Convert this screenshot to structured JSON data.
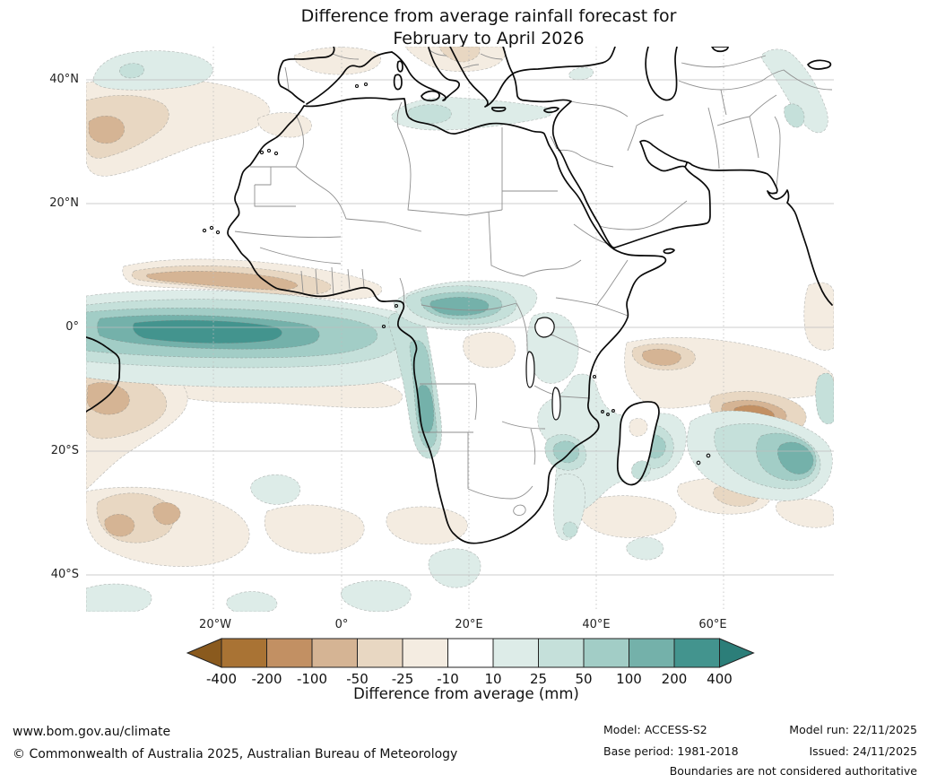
{
  "title": {
    "line1": "Difference from average rainfall forecast for",
    "line2": "February to April 2026"
  },
  "map": {
    "lat_labels": [
      "40°N",
      "20°N",
      "0°",
      "20°S",
      "40°S"
    ],
    "lon_labels": [
      "20°W",
      "0°",
      "20°E",
      "40°E",
      "60°E"
    ],
    "region": "Africa with surrounding Atlantic and Indian Oceans, southern Europe and the Middle East",
    "anomaly_regions": [
      {
        "area": "Equatorial Atlantic / Gulf of Guinea",
        "anomaly": "wetter",
        "peak_mm": "+200"
      },
      {
        "area": "Guinea coast band (~5-8N)",
        "anomaly": "drier",
        "peak_mm": "-100"
      },
      {
        "area": "Northwest Atlantic (~30N)",
        "anomaly": "drier",
        "peak_mm": "-100"
      },
      {
        "area": "Northeast Atlantic (~42N)",
        "anomaly": "wetter",
        "peak_mm": "+25"
      },
      {
        "area": "Central Mediterranean",
        "anomaly": "wetter",
        "peak_mm": "+25"
      },
      {
        "area": "Cameroon / Central African Republic",
        "anomaly": "wetter",
        "peak_mm": "+100"
      },
      {
        "area": "Gabon-Angola coast",
        "anomaly": "wetter",
        "peak_mm": "+100"
      },
      {
        "area": "Southeast Atlantic (~10-30S)",
        "anomaly": "drier",
        "peak_mm": "-100"
      },
      {
        "area": "Mozambique Channel and Madagascar",
        "anomaly": "wetter",
        "peak_mm": "+50"
      },
      {
        "area": "Southwest Indian Ocean (~20S, 60E)",
        "anomaly": "wetter",
        "peak_mm": "+100"
      },
      {
        "area": "Tropical Indian Ocean east of Madagascar (~10-18S)",
        "anomaly": "drier",
        "peak_mm": "-100"
      },
      {
        "area": "Central Asia band toward NW India",
        "anomaly": "wetter",
        "peak_mm": "+25"
      }
    ]
  },
  "colorbar": {
    "caption": "Difference from average (mm)",
    "ticks": [
      "-400",
      "-200",
      "-100",
      "-50",
      "-25",
      "-10",
      "10",
      "25",
      "50",
      "100",
      "200",
      "400"
    ],
    "colors": [
      "#8a5a1e",
      "#a97334",
      "#c29063",
      "#d5b494",
      "#e8d7c2",
      "#f4ece1",
      "#ffffff",
      "#ddece8",
      "#c5e0da",
      "#a2cdc6",
      "#74b1aa",
      "#43948e",
      "#2c7e79"
    ]
  },
  "footer": {
    "website": "www.bom.gov.au/climate",
    "copyright": "© Commonwealth of Australia 2025, Australian Bureau of Meteorology",
    "model_label": "Model: ACCESS-S2",
    "model_run": "Model run: 22/11/2025",
    "base_period": "Base period: 1981-2018",
    "issued": "Issued: 24/11/2025",
    "disclaimer": "Boundaries are not considered authoritative"
  }
}
